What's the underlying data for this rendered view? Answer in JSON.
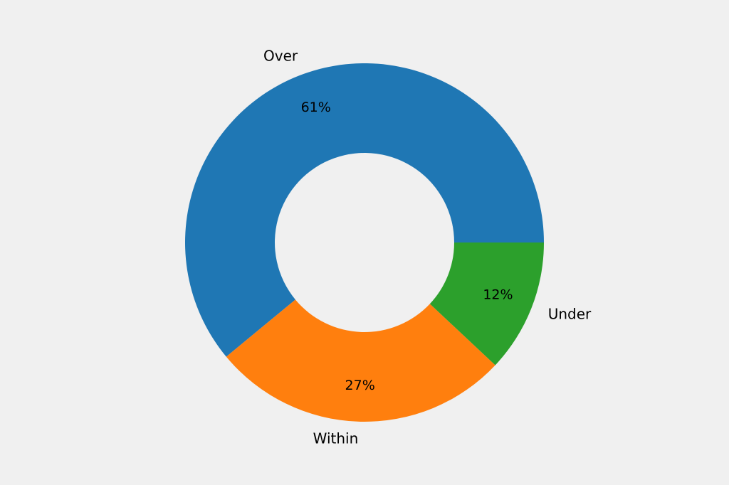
{
  "chart_data": {
    "type": "pie",
    "subtype": "donut",
    "categories": [
      "Over",
      "Within",
      "Under"
    ],
    "values": [
      61,
      27,
      12
    ],
    "value_labels": [
      "61%",
      "27%",
      "12%"
    ],
    "colors": [
      "#1f77b4",
      "#ff7f0e",
      "#2ca02c"
    ],
    "start_angle_deg": 0,
    "direction": "counterclockwise",
    "title": "",
    "legend": "none"
  },
  "background_color": "#f0f0f0"
}
